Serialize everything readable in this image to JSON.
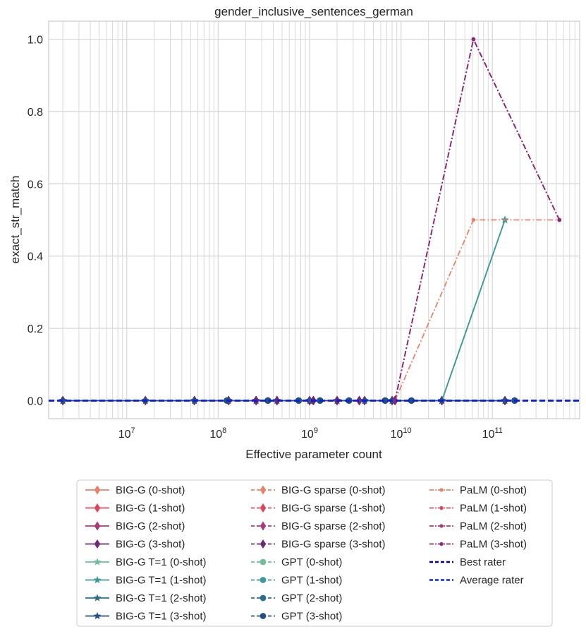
{
  "chart_data": {
    "type": "line",
    "title": "gender_inclusive_sentences_german",
    "xlabel": "Effective parameter count",
    "ylabel": "exact_str_match",
    "xscale": "log",
    "xlim": [
      1400000,
      900000000000
    ],
    "ylim": [
      -0.05,
      1.05
    ],
    "yticks": [
      0.0,
      0.2,
      0.4,
      0.6,
      0.8,
      1.0
    ],
    "ytick_labels": [
      "0.0",
      "0.2",
      "0.4",
      "0.6",
      "0.8",
      "1.0"
    ],
    "xticks": [
      10000000,
      100000000,
      1000000000,
      10000000000,
      100000000000
    ],
    "xtick_labels": [
      {
        "base": "10",
        "exp": "7"
      },
      {
        "base": "10",
        "exp": "8"
      },
      {
        "base": "10",
        "exp": "9"
      },
      {
        "base": "10",
        "exp": "10"
      },
      {
        "base": "10",
        "exp": "11"
      }
    ],
    "grid": true,
    "legend_position": "bottom, outside plot, 3 columns",
    "series": [
      {
        "name": "BIG-G (0-shot)",
        "color": "#e8826a",
        "dash": "solid",
        "marker": "diamond",
        "x": [
          2000000,
          16000000,
          55000000,
          130000000,
          260000000,
          440000000,
          1000000000,
          2000000000,
          4000000000,
          8000000000,
          28000000000,
          137000000000
        ],
        "y": [
          0,
          0,
          0,
          0,
          0,
          0,
          0,
          0,
          0,
          0,
          0,
          0
        ]
      },
      {
        "name": "BIG-G (1-shot)",
        "color": "#d9475d",
        "dash": "solid",
        "marker": "diamond",
        "x": [
          2000000,
          16000000,
          55000000,
          130000000,
          260000000,
          440000000,
          1000000000,
          2000000000,
          4000000000,
          8000000000,
          28000000000,
          137000000000
        ],
        "y": [
          0,
          0,
          0,
          0,
          0,
          0,
          0,
          0,
          0,
          0,
          0,
          0
        ]
      },
      {
        "name": "BIG-G (2-shot)",
        "color": "#a73b78",
        "dash": "solid",
        "marker": "diamond",
        "x": [
          2000000,
          16000000,
          55000000,
          130000000,
          260000000,
          440000000,
          1000000000,
          2000000000,
          4000000000,
          8000000000,
          28000000000,
          137000000000
        ],
        "y": [
          0,
          0,
          0,
          0,
          0,
          0,
          0,
          0,
          0,
          0,
          0,
          0
        ]
      },
      {
        "name": "BIG-G (3-shot)",
        "color": "#6e2a76",
        "dash": "solid",
        "marker": "diamond",
        "x": [
          2000000,
          16000000,
          55000000,
          130000000,
          260000000,
          440000000,
          1000000000,
          2000000000,
          4000000000,
          8000000000,
          28000000000,
          137000000000
        ],
        "y": [
          0,
          0,
          0,
          0,
          0,
          0,
          0,
          0,
          0,
          0,
          0,
          0
        ]
      },
      {
        "name": "BIG-G T=1 (0-shot)",
        "color": "#6cbf96",
        "dash": "solid",
        "marker": "star",
        "x": [
          2000000,
          16000000,
          55000000,
          130000000,
          260000000,
          440000000,
          1000000000,
          2000000000,
          4000000000,
          8000000000,
          28000000000,
          137000000000
        ],
        "y": [
          0,
          0,
          0,
          0,
          0,
          0,
          0,
          0,
          0,
          0,
          0,
          0.5
        ]
      },
      {
        "name": "BIG-G T=1 (1-shot)",
        "color": "#3b9a98",
        "dash": "solid",
        "marker": "star",
        "x": [
          2000000,
          16000000,
          55000000,
          130000000,
          260000000,
          440000000,
          1000000000,
          2000000000,
          4000000000,
          8000000000,
          28000000000,
          137000000000
        ],
        "y": [
          0,
          0,
          0,
          0,
          0,
          0,
          0,
          0,
          0,
          0,
          0,
          0.5
        ]
      },
      {
        "name": "BIG-G T=1 (2-shot)",
        "color": "#2a6f8d",
        "dash": "solid",
        "marker": "star",
        "x": [
          2000000,
          16000000,
          55000000,
          130000000,
          260000000,
          440000000,
          1000000000,
          2000000000,
          4000000000,
          8000000000,
          28000000000,
          137000000000
        ],
        "y": [
          0,
          0,
          0,
          0,
          0,
          0,
          0,
          0,
          0,
          0,
          0,
          0
        ]
      },
      {
        "name": "BIG-G T=1 (3-shot)",
        "color": "#24507f",
        "dash": "solid",
        "marker": "star",
        "x": [
          2000000,
          16000000,
          55000000,
          130000000,
          260000000,
          440000000,
          1000000000,
          2000000000,
          4000000000,
          8000000000,
          28000000000,
          137000000000
        ],
        "y": [
          0,
          0,
          0,
          0,
          0,
          0,
          0,
          0,
          0,
          0,
          0,
          0
        ]
      },
      {
        "name": "BIG-G sparse (0-shot)",
        "color": "#e8826a",
        "dash": "dashed",
        "marker": "diamond",
        "x": [
          130000000,
          260000000,
          440000000,
          1100000000,
          2000000000,
          3500000000,
          8600000000
        ],
        "y": [
          0,
          0,
          0,
          0,
          0,
          0,
          0
        ]
      },
      {
        "name": "BIG-G sparse (1-shot)",
        "color": "#d9475d",
        "dash": "dashed",
        "marker": "diamond",
        "x": [
          130000000,
          260000000,
          440000000,
          1100000000,
          2000000000,
          3500000000,
          8600000000
        ],
        "y": [
          0,
          0,
          0,
          0,
          0,
          0,
          0
        ]
      },
      {
        "name": "BIG-G sparse (2-shot)",
        "color": "#a73b78",
        "dash": "dashed",
        "marker": "diamond",
        "x": [
          130000000,
          260000000,
          440000000,
          1100000000,
          2000000000,
          3500000000,
          8600000000
        ],
        "y": [
          0,
          0,
          0,
          0,
          0,
          0,
          0
        ]
      },
      {
        "name": "BIG-G sparse (3-shot)",
        "color": "#6e2a76",
        "dash": "dashed",
        "marker": "diamond",
        "x": [
          130000000,
          260000000,
          440000000,
          1100000000,
          2000000000,
          3500000000,
          8600000000
        ],
        "y": [
          0,
          0,
          0,
          0,
          0,
          0,
          0
        ]
      },
      {
        "name": "GPT (0-shot)",
        "color": "#6cbf96",
        "dash": "dashed",
        "marker": "circle",
        "x": [
          125000000,
          350000000,
          760000000,
          1300000000,
          2700000000,
          6700000000,
          13000000000,
          175000000000
        ],
        "y": [
          0,
          0,
          0,
          0,
          0,
          0,
          0,
          0
        ]
      },
      {
        "name": "GPT (1-shot)",
        "color": "#3b9a98",
        "dash": "dashed",
        "marker": "circle",
        "x": [
          125000000,
          350000000,
          760000000,
          1300000000,
          2700000000,
          6700000000,
          13000000000,
          175000000000
        ],
        "y": [
          0,
          0,
          0,
          0,
          0,
          0,
          0,
          0
        ]
      },
      {
        "name": "GPT (2-shot)",
        "color": "#2a6f8d",
        "dash": "dashed",
        "marker": "circle",
        "x": [
          125000000,
          350000000,
          760000000,
          1300000000,
          2700000000,
          6700000000,
          13000000000,
          175000000000
        ],
        "y": [
          0,
          0,
          0,
          0,
          0,
          0,
          0,
          0
        ]
      },
      {
        "name": "GPT (3-shot)",
        "color": "#24507f",
        "dash": "dashed",
        "marker": "circle",
        "x": [
          125000000,
          350000000,
          760000000,
          1300000000,
          2700000000,
          6700000000,
          13000000000,
          175000000000
        ],
        "y": [
          0,
          0,
          0,
          0,
          0,
          0,
          0,
          0
        ]
      },
      {
        "name": "PaLM (0-shot)",
        "color": "#e8826a",
        "dash": "dashdot",
        "marker": "dot",
        "x": [
          8600000000,
          62000000000,
          540000000000
        ],
        "y": [
          0,
          0.5,
          0.5
        ]
      },
      {
        "name": "PaLM (1-shot)",
        "color": "#d9475d",
        "dash": "dashdot",
        "marker": "dot",
        "x": [
          8600000000,
          62000000000,
          540000000000
        ],
        "y": [
          0,
          1.0,
          0.5
        ]
      },
      {
        "name": "PaLM (2-shot)",
        "color": "#a73b78",
        "dash": "dashdot",
        "marker": "dot",
        "x": [
          8600000000,
          62000000000,
          540000000000
        ],
        "y": [
          0,
          1.0,
          0.5
        ]
      },
      {
        "name": "PaLM (3-shot)",
        "color": "#8a2a7a",
        "dash": "dashdot",
        "marker": "dot",
        "x": [
          8600000000,
          62000000000,
          540000000000
        ],
        "y": [
          0,
          1.0,
          0.5
        ]
      },
      {
        "name": "Best rater",
        "color": "#00008b",
        "dash": "dashed-bold",
        "marker": "none",
        "hline": 0.0
      },
      {
        "name": "Average rater",
        "color": "#0a1fe6",
        "dash": "dashed-bold",
        "marker": "none",
        "hline": 0.0
      }
    ]
  }
}
